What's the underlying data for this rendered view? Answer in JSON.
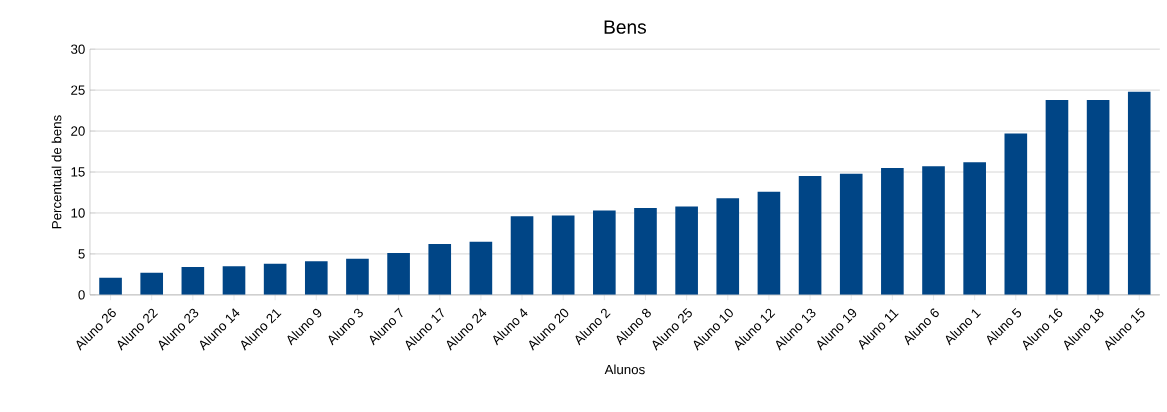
{
  "chart_data": {
    "type": "bar",
    "title": "Bens",
    "xlabel": "Alunos",
    "ylabel": "Percentual de bens",
    "categories": [
      "Aluno 26",
      "Aluno 22",
      "Aluno 23",
      "Aluno 14",
      "Aluno 21",
      "Aluno 9",
      "Aluno 3",
      "Aluno 7",
      "Aluno 17",
      "Aluno 24",
      "Aluno 4",
      "Aluno 20",
      "Aluno 2",
      "Aluno 8",
      "Aluno 25",
      "Aluno 10",
      "Aluno 12",
      "Aluno 13",
      "Aluno 19",
      "Aluno 11",
      "Aluno 6",
      "Aluno 1",
      "Aluno 5",
      "Aluno 16",
      "Aluno 18",
      "Aluno 15"
    ],
    "values": [
      2.1,
      2.7,
      3.4,
      3.5,
      3.8,
      4.1,
      4.4,
      5.1,
      6.2,
      6.5,
      9.6,
      9.7,
      10.3,
      10.6,
      10.8,
      11.8,
      12.6,
      14.5,
      14.8,
      15.5,
      15.7,
      16.2,
      19.7,
      23.8,
      23.8,
      24.8
    ],
    "color": "#004586",
    "ylim": [
      0,
      30
    ],
    "yticks": [
      0,
      5,
      10,
      15,
      20,
      25,
      30
    ],
    "grid": "y"
  }
}
